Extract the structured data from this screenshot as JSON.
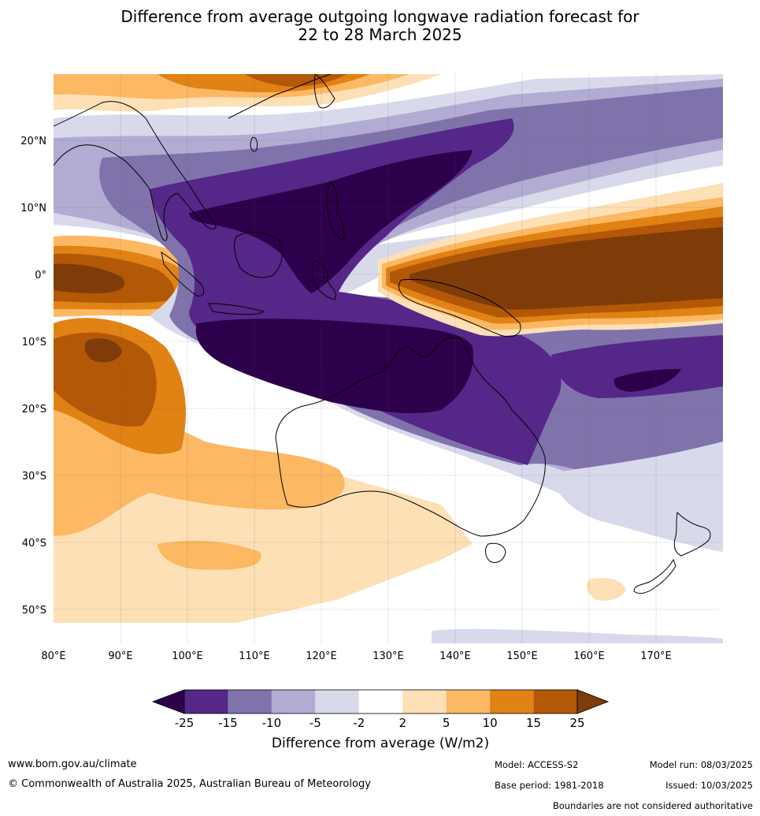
{
  "title_line1": "Difference from average outgoing longwave radiation forecast for",
  "title_line2": "22 to 28 March 2025",
  "lat_labels": [
    "20°N",
    "10°N",
    "0°",
    "10°S",
    "20°S",
    "30°S",
    "40°S",
    "50°S"
  ],
  "lon_labels": [
    "80°E",
    "90°E",
    "100°E",
    "110°E",
    "120°E",
    "130°E",
    "140°E",
    "150°E",
    "160°E",
    "170°E"
  ],
  "colorbar": {
    "ticks": [
      "-25",
      "-15",
      "-10",
      "-5",
      "-2",
      "2",
      "5",
      "10",
      "15",
      "25"
    ],
    "colors": [
      "#2d004b",
      "#542788",
      "#8073ac",
      "#b2abd2",
      "#d8daeb",
      "#ffffff",
      "#fee0b6",
      "#fdb863",
      "#e08214",
      "#b35806",
      "#7f3b08"
    ],
    "label": "Difference from average (W/m2)"
  },
  "footer": {
    "website": "www.bom.gov.au/climate",
    "copyright": "© Commonwealth of Australia 2025, Australian Bureau of Meteorology",
    "model": "Model: ACCESS-S2",
    "base_period": "Base period: 1981-2018",
    "model_run": "Model run: 08/03/2025",
    "issued": "Issued: 10/03/2025",
    "disclaimer": "Boundaries are not considered authoritative"
  }
}
